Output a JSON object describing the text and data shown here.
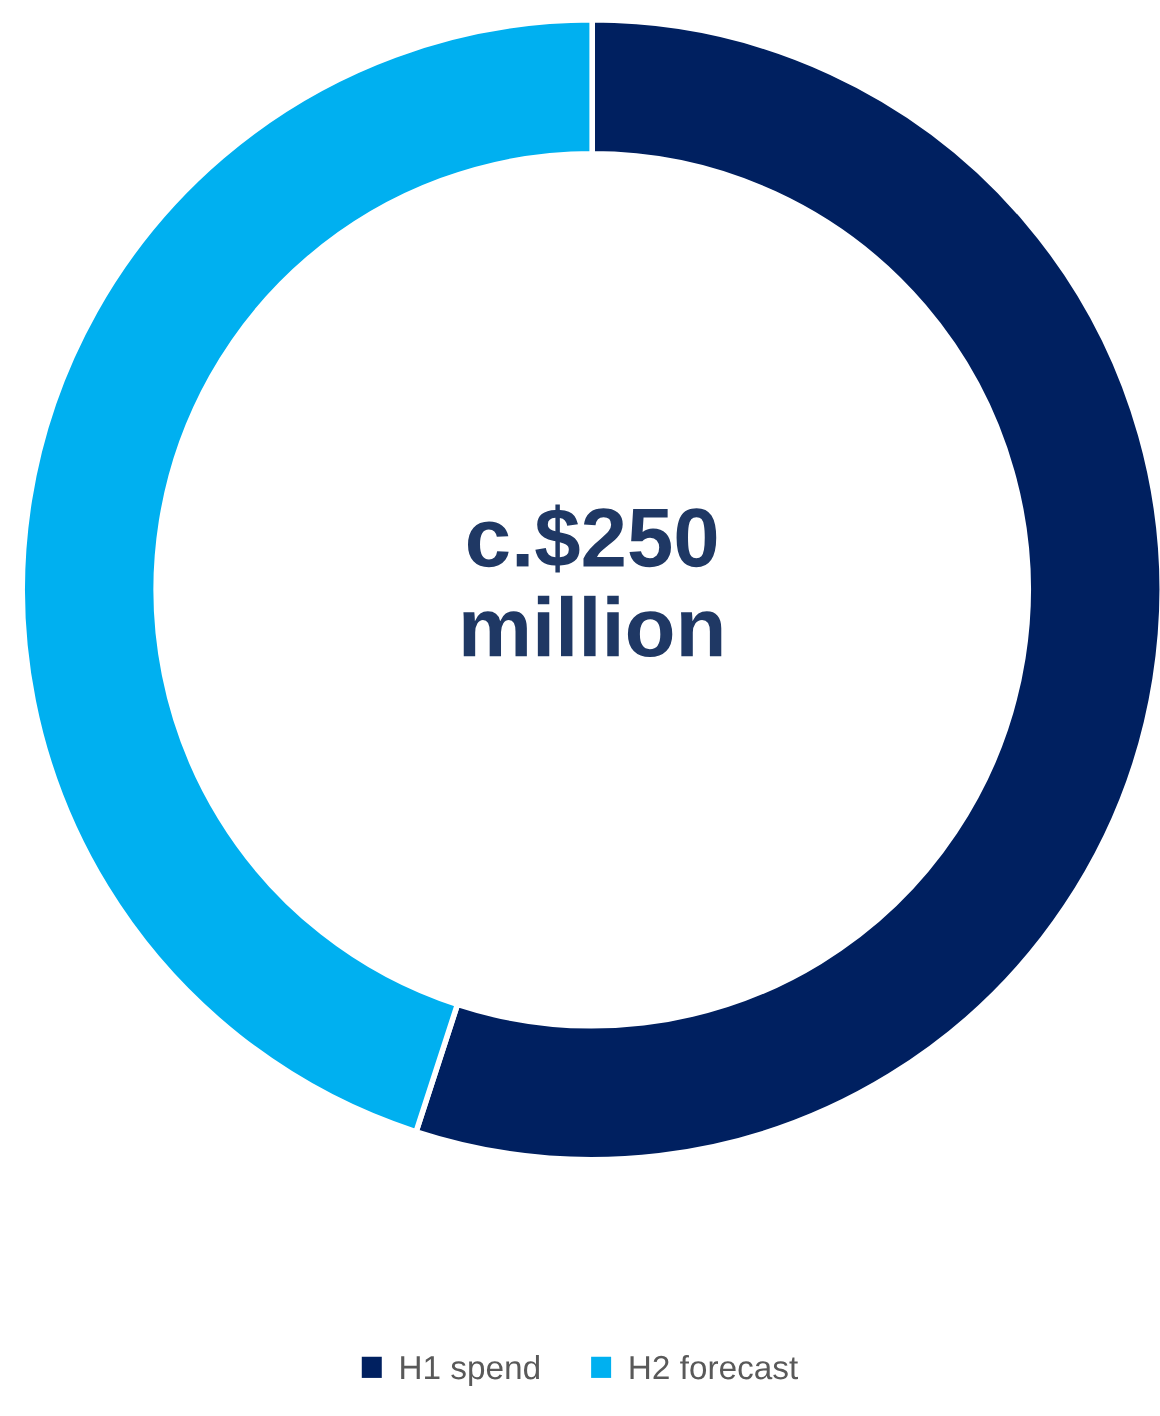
{
  "chart_data": {
    "type": "donut",
    "categories": [
      "H1 spend",
      "H2 forecast"
    ],
    "values": [
      55,
      45
    ],
    "colors": [
      "#002060",
      "#00b0f0"
    ],
    "annotations": [
      "c.$250\nmillion"
    ],
    "legend": "bottom"
  }
}
